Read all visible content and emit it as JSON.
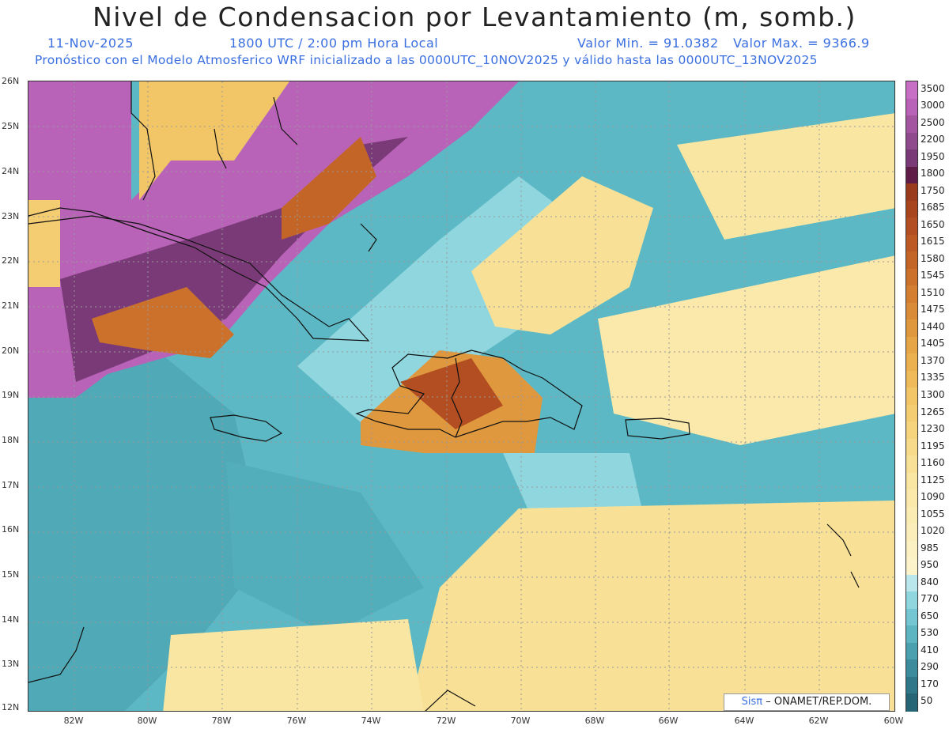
{
  "title": "Nivel de Condensacion por Levantamiento (m, somb.)",
  "date": "11-Nov-2025",
  "time": "1800 UTC / 2:00 pm Hora Local",
  "valmin": "Valor Min. = 91.0382",
  "valmax": "Valor Max. = 9366.9",
  "forecast": "Pronóstico con el Modelo Atmosferico WRF inicializado a las 0000UTC_10NOV2025 y válido hasta las  0000UTC_13NOV2025",
  "credit": {
    "logo": "Sisπ",
    "text": "– ONAMET/REP.DOM."
  },
  "lat_labels": [
    "26N",
    "25N",
    "24N",
    "23N",
    "22N",
    "21N",
    "20N",
    "19N",
    "18N",
    "17N",
    "16N",
    "15N",
    "14N",
    "13N",
    "12N"
  ],
  "lon_labels": [
    "82W",
    "80W",
    "78W",
    "76W",
    "74W",
    "72W",
    "70W",
    "68W",
    "66W",
    "64W",
    "62W",
    "60W"
  ],
  "colorbar": {
    "levels": [
      "3500",
      "3000",
      "2500",
      "2200",
      "1950",
      "1800",
      "1750",
      "1685",
      "1650",
      "1615",
      "1580",
      "1545",
      "1510",
      "1475",
      "1440",
      "1405",
      "1370",
      "1335",
      "1300",
      "1265",
      "1230",
      "1195",
      "1160",
      "1125",
      "1090",
      "1055",
      "1020",
      "985",
      "950",
      "840",
      "770",
      "650",
      "530",
      "410",
      "290",
      "170",
      "50"
    ],
    "colors": [
      "#c76ec5",
      "#b963b8",
      "#a3559f",
      "#8e4a8c",
      "#7a3a77",
      "#5e1c47",
      "#9b3b1d",
      "#a8441e",
      "#b24e21",
      "#bc5924",
      "#c46528",
      "#cc712c",
      "#d47e31",
      "#da8b37",
      "#e0983e",
      "#e6a546",
      "#ebb04f",
      "#efbb5a",
      "#f2c566",
      "#f4cd72",
      "#f6d47e",
      "#f7db8a",
      "#f8e196",
      "#f9e6a2",
      "#fae9ab",
      "#fbecb3",
      "#fbeebb",
      "#fcf1c3",
      "#fdf3cb",
      "#b9e7ec",
      "#8fd6df",
      "#74c7d2",
      "#5cb5c1",
      "#4aa0ae",
      "#3c8b9c",
      "#30778a",
      "#256576"
    ],
    "tick_labels": [
      "3500",
      "3000",
      "2500",
      "2200",
      "1950",
      "1800",
      "1750",
      "1685",
      "1650",
      "1615",
      "1580",
      "1545",
      "1510",
      "1475",
      "1440",
      "1405",
      "1370",
      "1335",
      "1300",
      "1265",
      "1230",
      "1195",
      "1160",
      "1125",
      "1090",
      "1055",
      "1020",
      "985",
      "950",
      "840",
      "770",
      "650",
      "530",
      "410",
      "290",
      "170",
      "50"
    ]
  }
}
